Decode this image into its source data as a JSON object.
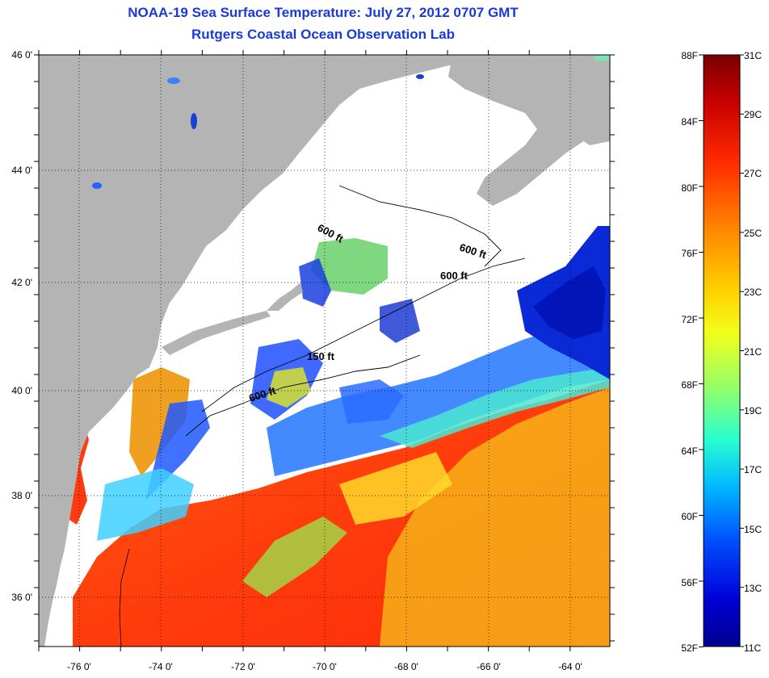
{
  "title": "NOAA-19 Sea Surface Temperature:  July 27, 2012 0707 GMT",
  "subtitle": "Rutgers Coastal Ocean Observation Lab",
  "map": {
    "lat_ticks": [
      "46 0'",
      "44 0'",
      "42 0'",
      "40 0'",
      "38 0'",
      "36 0'"
    ],
    "lon_ticks": [
      "-76 0'",
      "-74 0'",
      "-72 0'",
      "-70 0'",
      "-68 0'",
      "-66 0'",
      "-64 0'"
    ],
    "contour_labels": [
      "600 ft",
      "600 ft",
      "600 ft",
      "150 ft",
      "600 ft"
    ],
    "colors": {
      "land": "#b4b4b4",
      "cloud": "#ffffff"
    }
  },
  "colorbar": {
    "fahrenheit": [
      "88F",
      "84F",
      "80F",
      "76F",
      "72F",
      "68F",
      "64F",
      "60F",
      "56F",
      "52F"
    ],
    "celsius": [
      "31C",
      "29C",
      "27C",
      "25C",
      "23C",
      "21C",
      "19C",
      "17C",
      "15C",
      "13C",
      "11C"
    ]
  }
}
